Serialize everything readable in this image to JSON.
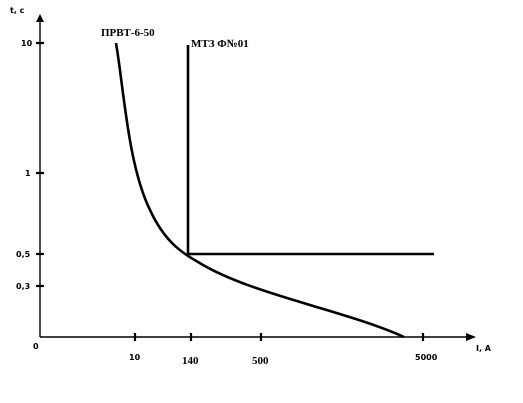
{
  "chart_data": {
    "type": "line",
    "title": "",
    "xlabel": "I, A",
    "ylabel": "t, c",
    "origin_label": "0",
    "x_ticks": [
      "10",
      "140",
      "500",
      "5000"
    ],
    "y_ticks": [
      "10",
      "1",
      "0,5",
      "0,3"
    ],
    "series": [
      {
        "name": "ПРВТ-6-50",
        "points": [
          {
            "x": 8,
            "y": 10
          },
          {
            "x": 14,
            "y": 3
          },
          {
            "x": 30,
            "y": 1.2
          },
          {
            "x": 70,
            "y": 0.7
          },
          {
            "x": 140,
            "y": 0.5
          },
          {
            "x": 300,
            "y": 0.32
          },
          {
            "x": 900,
            "y": 0.2
          },
          {
            "x": 3000,
            "y": 0.12
          }
        ]
      },
      {
        "name": "МТЗ Ф№01",
        "points": [
          {
            "x": 140,
            "y": 10
          },
          {
            "x": 140,
            "y": 0.5
          },
          {
            "x": 8000,
            "y": 0.5
          }
        ]
      }
    ]
  }
}
